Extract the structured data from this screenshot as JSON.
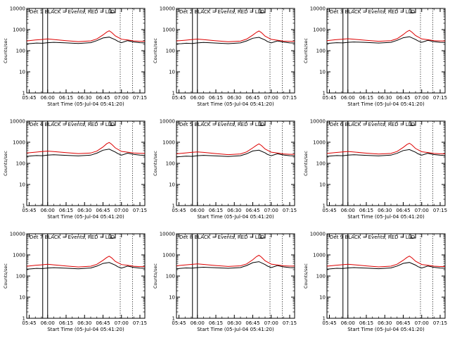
{
  "chart_data": {
    "type": "line",
    "y_scale": "log",
    "ylim": [
      1,
      10000
    ],
    "y_tick_labels": [
      "1",
      "10",
      "100",
      "1000",
      "10000"
    ],
    "x_range_minutes": [
      -2,
      94
    ],
    "x_tick_labels": [
      "05:45",
      "06:00",
      "06:15",
      "06:30",
      "06:45",
      "07:00",
      "07:15"
    ],
    "xlabel": "Start Time (05-Jul-04 05:41:20)",
    "ylabel": "Counts/sec",
    "legend_text": "BLACK = Events, RED = LLD",
    "marker_vlines_min": [
      11,
      15
    ],
    "dotted_vlines_min": [
      74,
      84
    ],
    "panels": [
      {
        "title": "Det 1",
        "series": [
          {
            "name": "Events",
            "color": "#000000",
            "x": [
              -2,
              2,
              6,
              10,
              11,
              15,
              20,
              30,
              40,
              50,
              55,
              60,
              65,
              70,
              72,
              75,
              80,
              85,
              90,
              94
            ],
            "values": [
              210,
              220,
              230,
              225,
              225,
              240,
              250,
              235,
              220,
              240,
              300,
              400,
              440,
              330,
              280,
              240,
              300,
              260,
              240,
              235
            ]
          },
          {
            "name": "LLD",
            "color": "#dd0000",
            "x": [
              -2,
              5,
              10,
              15,
              20,
              30,
              40,
              50,
              55,
              60,
              63,
              65,
              67,
              70,
              75,
              80,
              85,
              90,
              94
            ],
            "values": [
              290,
              320,
              340,
              360,
              340,
              300,
              270,
              290,
              360,
              560,
              760,
              880,
              730,
              500,
              350,
              320,
              290,
              280,
              280
            ]
          }
        ]
      },
      {
        "title": "Det 2",
        "series": [
          {
            "name": "Events",
            "color": "#000000",
            "x": [
              -2,
              2,
              6,
              10,
              11,
              15,
              20,
              30,
              40,
              50,
              55,
              60,
              65,
              70,
              72,
              75,
              80,
              85,
              90,
              94
            ],
            "values": [
              210,
              215,
              225,
              220,
              220,
              235,
              245,
              230,
              215,
              235,
              290,
              390,
              430,
              320,
              270,
              235,
              290,
              255,
              235,
              230
            ]
          },
          {
            "name": "LLD",
            "color": "#dd0000",
            "x": [
              -2,
              5,
              10,
              15,
              20,
              30,
              40,
              50,
              55,
              60,
              63,
              65,
              67,
              70,
              75,
              80,
              85,
              90,
              94
            ],
            "values": [
              290,
              315,
              335,
              355,
              335,
              295,
              265,
              285,
              355,
              550,
              740,
              860,
              720,
              490,
              345,
              315,
              285,
              275,
              275
            ]
          }
        ]
      },
      {
        "title": "Det 3",
        "series": [
          {
            "name": "Events",
            "color": "#000000",
            "x": [
              -2,
              2,
              6,
              10,
              11,
              15,
              20,
              30,
              40,
              50,
              55,
              60,
              65,
              70,
              72,
              75,
              80,
              85,
              90,
              94
            ],
            "values": [
              220,
              230,
              240,
              235,
              235,
              250,
              260,
              245,
              230,
              250,
              310,
              410,
              460,
              340,
              290,
              250,
              310,
              270,
              250,
              245
            ]
          },
          {
            "name": "LLD",
            "color": "#dd0000",
            "x": [
              -2,
              5,
              10,
              15,
              20,
              30,
              40,
              50,
              55,
              60,
              63,
              65,
              67,
              70,
              75,
              80,
              85,
              90,
              94
            ],
            "values": [
              300,
              330,
              350,
              370,
              350,
              310,
              280,
              300,
              370,
              580,
              800,
              920,
              760,
              520,
              360,
              330,
              300,
              290,
              290
            ]
          }
        ]
      },
      {
        "title": "Det 4",
        "series": [
          {
            "name": "Events",
            "color": "#000000",
            "x": [
              -2,
              2,
              6,
              10,
              11,
              15,
              20,
              30,
              40,
              50,
              55,
              60,
              65,
              70,
              72,
              75,
              80,
              85,
              90,
              94
            ],
            "values": [
              215,
              225,
              235,
              230,
              230,
              245,
              255,
              240,
              225,
              245,
              305,
              420,
              470,
              345,
              290,
              245,
              305,
              265,
              245,
              240
            ]
          },
          {
            "name": "LLD",
            "color": "#dd0000",
            "x": [
              -2,
              5,
              10,
              15,
              20,
              30,
              40,
              50,
              55,
              60,
              63,
              65,
              67,
              70,
              75,
              80,
              85,
              90,
              94
            ],
            "values": [
              310,
              340,
              360,
              380,
              360,
              320,
              290,
              310,
              380,
              600,
              850,
              980,
              800,
              540,
              370,
              340,
              310,
              300,
              300
            ]
          }
        ]
      },
      {
        "title": "Det 5",
        "series": [
          {
            "name": "Events",
            "color": "#000000",
            "x": [
              -2,
              2,
              6,
              10,
              11,
              15,
              20,
              30,
              40,
              50,
              55,
              60,
              65,
              70,
              72,
              75,
              80,
              85,
              90,
              94
            ],
            "values": [
              205,
              210,
              220,
              215,
              215,
              230,
              240,
              225,
              210,
              230,
              285,
              385,
              420,
              315,
              265,
              230,
              285,
              250,
              230,
              225
            ]
          },
          {
            "name": "LLD",
            "color": "#dd0000",
            "x": [
              -2,
              5,
              10,
              15,
              20,
              30,
              40,
              50,
              55,
              60,
              63,
              65,
              67,
              70,
              75,
              80,
              85,
              90,
              94
            ],
            "values": [
              285,
              310,
              330,
              350,
              330,
              290,
              260,
              280,
              350,
              540,
              720,
              840,
              700,
              480,
              340,
              310,
              280,
              270,
              270
            ]
          }
        ]
      },
      {
        "title": "Det 6",
        "series": [
          {
            "name": "Events",
            "color": "#000000",
            "x": [
              -2,
              2,
              6,
              10,
              11,
              15,
              20,
              30,
              40,
              50,
              55,
              60,
              65,
              70,
              72,
              75,
              80,
              85,
              90,
              94
            ],
            "values": [
              215,
              225,
              235,
              230,
              230,
              245,
              255,
              240,
              225,
              245,
              300,
              405,
              450,
              335,
              285,
              245,
              300,
              262,
              243,
              238
            ]
          },
          {
            "name": "LLD",
            "color": "#dd0000",
            "x": [
              -2,
              5,
              10,
              15,
              20,
              30,
              40,
              50,
              55,
              60,
              63,
              65,
              67,
              70,
              75,
              80,
              85,
              90,
              94
            ],
            "values": [
              295,
              325,
              345,
              365,
              345,
              305,
              275,
              295,
              365,
              570,
              780,
              900,
              740,
              505,
              355,
              325,
              295,
              285,
              285
            ]
          }
        ]
      },
      {
        "title": "Det 7",
        "series": [
          {
            "name": "Events",
            "color": "#000000",
            "x": [
              -2,
              2,
              6,
              10,
              11,
              15,
              20,
              30,
              40,
              50,
              55,
              60,
              65,
              70,
              72,
              75,
              80,
              85,
              90,
              94
            ],
            "values": [
              210,
              220,
              230,
              225,
              225,
              240,
              250,
              235,
              220,
              240,
              295,
              395,
              435,
              325,
              275,
              238,
              295,
              258,
              238,
              233
            ]
          },
          {
            "name": "LLD",
            "color": "#dd0000",
            "x": [
              -2,
              5,
              10,
              15,
              20,
              30,
              40,
              50,
              55,
              60,
              63,
              65,
              67,
              70,
              75,
              80,
              85,
              90,
              94
            ],
            "values": [
              290,
              320,
              340,
              360,
              340,
              300,
              270,
              290,
              360,
              555,
              750,
              870,
              725,
              495,
              350,
              320,
              290,
              280,
              280
            ]
          }
        ]
      },
      {
        "title": "Det 8",
        "series": [
          {
            "name": "Events",
            "color": "#000000",
            "x": [
              -2,
              2,
              6,
              10,
              11,
              15,
              20,
              30,
              40,
              50,
              55,
              60,
              65,
              70,
              72,
              75,
              80,
              85,
              90,
              94
            ],
            "values": [
              220,
              232,
              242,
              237,
              237,
              252,
              262,
              247,
              232,
              252,
              315,
              430,
              480,
              350,
              295,
              252,
              315,
              272,
              252,
              247
            ]
          },
          {
            "name": "LLD",
            "color": "#dd0000",
            "x": [
              -2,
              5,
              10,
              15,
              20,
              30,
              40,
              50,
              55,
              60,
              63,
              65,
              67,
              70,
              75,
              80,
              85,
              90,
              94
            ],
            "values": [
              305,
              335,
              355,
              375,
              355,
              315,
              285,
              305,
              375,
              590,
              830,
              960,
              790,
              530,
              365,
              335,
              305,
              295,
              295
            ]
          }
        ]
      },
      {
        "title": "Det 9",
        "series": [
          {
            "name": "Events",
            "color": "#000000",
            "x": [
              -2,
              2,
              6,
              10,
              11,
              15,
              20,
              30,
              40,
              50,
              55,
              60,
              65,
              70,
              72,
              75,
              80,
              85,
              90,
              94
            ],
            "values": [
              212,
              222,
              232,
              227,
              227,
              242,
              252,
              237,
              222,
              242,
              298,
              398,
              440,
              328,
              278,
              240,
              298,
              260,
              240,
              235
            ]
          },
          {
            "name": "LLD",
            "color": "#dd0000",
            "x": [
              -2,
              5,
              10,
              15,
              20,
              30,
              40,
              50,
              55,
              60,
              63,
              65,
              67,
              70,
              75,
              80,
              85,
              90,
              94
            ],
            "values": [
              292,
              322,
              342,
              362,
              342,
              302,
              272,
              292,
              362,
              560,
              760,
              880,
              730,
              500,
              352,
              322,
              292,
              282,
              282
            ]
          }
        ]
      }
    ]
  }
}
